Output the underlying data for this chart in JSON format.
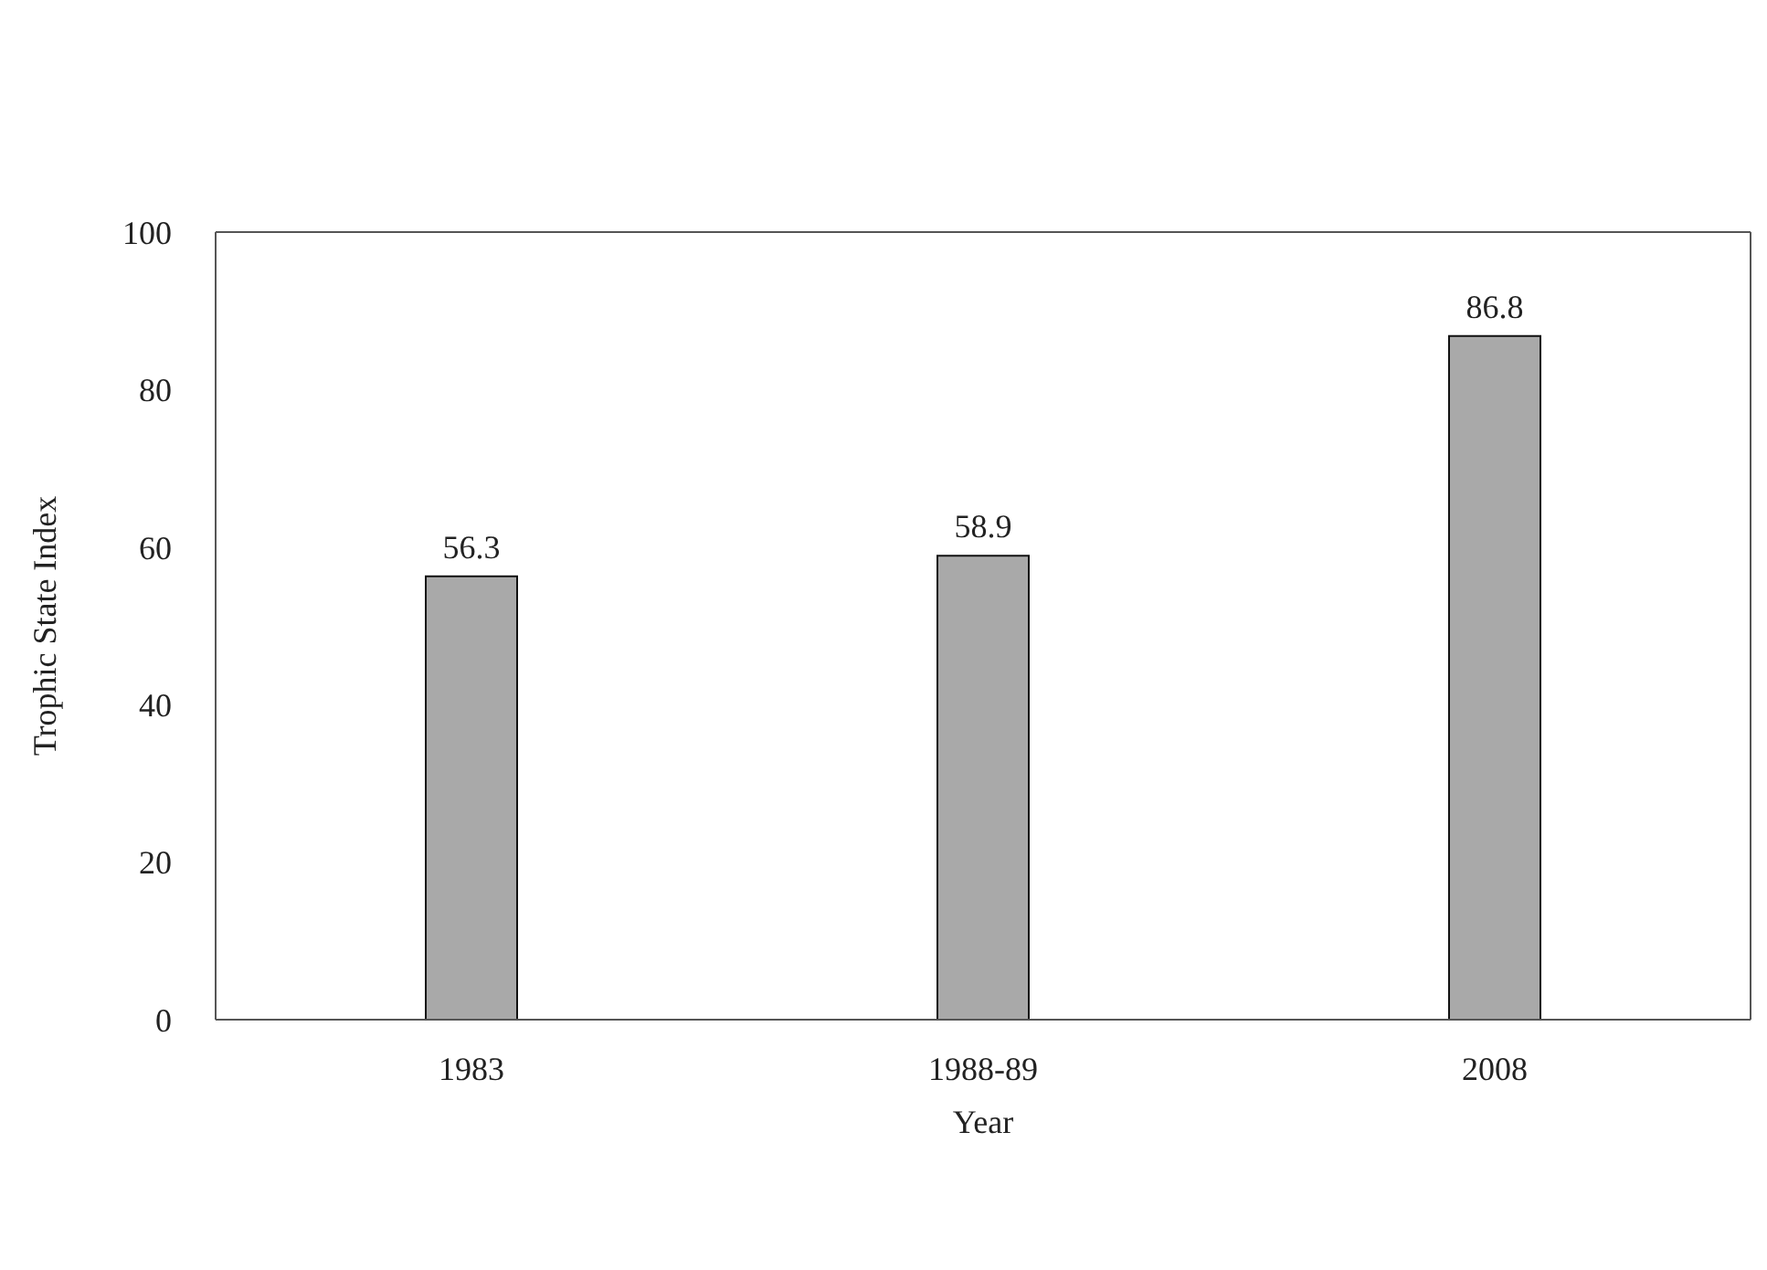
{
  "chart_data": {
    "type": "bar",
    "xlabel": "Year",
    "ylabel": "Trophic State Index",
    "categories": [
      "1983",
      "1988-89",
      "2008"
    ],
    "values": [
      56.3,
      58.9,
      86.8
    ],
    "color": "#a9a9a9",
    "ylim": [
      0,
      100
    ],
    "yticks": [
      0,
      20,
      40,
      60,
      80,
      100
    ],
    "data_labels": true,
    "grid": false
  }
}
